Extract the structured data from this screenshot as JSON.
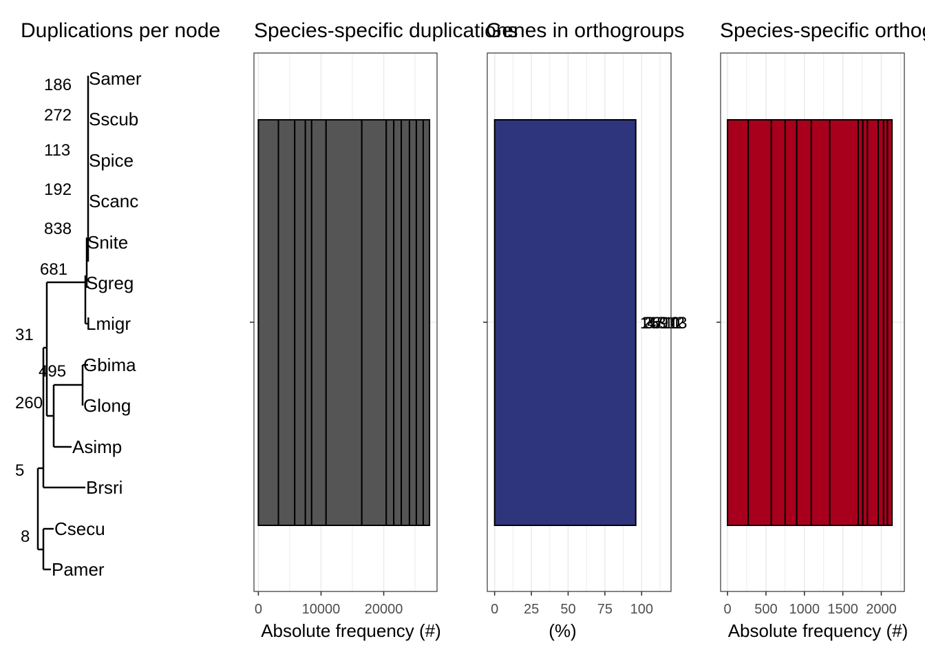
{
  "chart_data": [
    {
      "type": "tree",
      "title": "Duplications per node",
      "tips": [
        "Samer",
        "Sscub",
        "Spice",
        "Scanc",
        "Snite",
        "Sgreg",
        "Lmigr",
        "Gbima",
        "Glong",
        "Asimp",
        "Brsri",
        "Csecu",
        "Pamer"
      ],
      "node_labels": [
        "186",
        "272",
        "113",
        "192",
        "838",
        "681",
        "31",
        "495",
        "260",
        "5",
        "8"
      ]
    },
    {
      "type": "bar",
      "title": "Species-specific duplications",
      "xlabel": "Absolute frequency (#)",
      "xlim": [
        -700,
        28500
      ],
      "xticks": [
        0,
        10000,
        20000
      ],
      "xtick_labels": [
        "0",
        "10000",
        "20000"
      ],
      "stacked_boundaries": [
        3200,
        5800,
        7500,
        8500,
        10800,
        16500,
        20400,
        21600,
        22800,
        24100,
        25200,
        26300,
        27300
      ],
      "fill": "#555555"
    },
    {
      "type": "bar",
      "title": "Genes in orthogroups",
      "xlabel": "(%)",
      "xlim": [
        -5,
        120
      ],
      "xticks": [
        0,
        25,
        50,
        75,
        100
      ],
      "xtick_labels": [
        "0",
        "25",
        "50",
        "75",
        "100"
      ],
      "value": 96,
      "value_labels": [
        "1",
        "2",
        "3",
        "4",
        "5",
        "6",
        "7",
        "8",
        "9",
        "10",
        "11",
        "12",
        "13"
      ],
      "fill": "#2e357d"
    },
    {
      "type": "bar",
      "title": "Species-specific orthogroups",
      "xlabel": "Absolute frequency (#)",
      "xlim": [
        -90,
        2300
      ],
      "xticks": [
        0,
        500,
        1000,
        1500,
        2000
      ],
      "xtick_labels": [
        "0",
        "500",
        "1000",
        "1500",
        "2000"
      ],
      "stacked_boundaries": [
        270,
        570,
        750,
        900,
        1090,
        1330,
        1700,
        1760,
        1820,
        1960,
        2030,
        2080,
        2140
      ],
      "fill": "#a8001c"
    }
  ]
}
